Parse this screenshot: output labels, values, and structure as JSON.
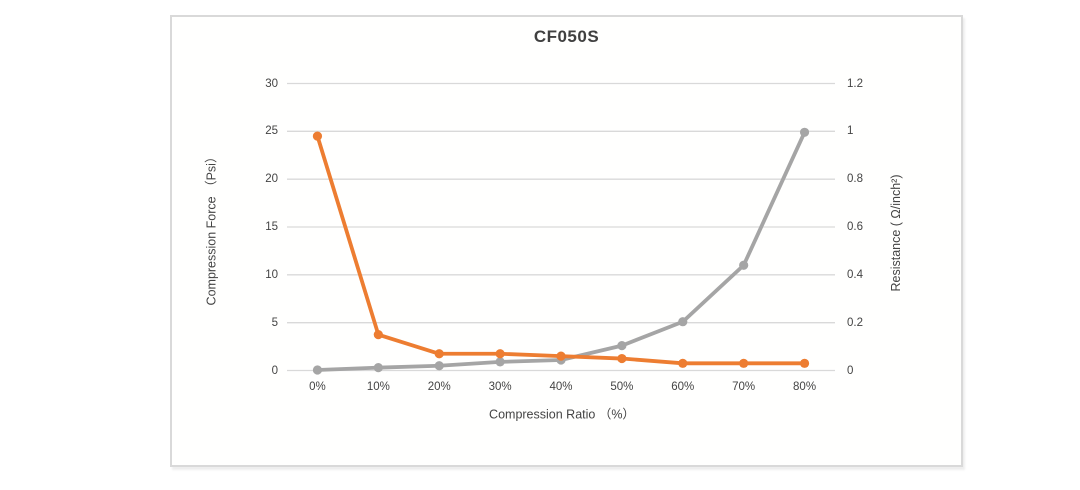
{
  "page": {
    "background": "#ffffff"
  },
  "card": {
    "background": "#fffffe",
    "border_color": "#d9d9d9"
  },
  "chart_data": {
    "type": "line",
    "title": "CF050S",
    "categories": [
      "0%",
      "10%",
      "20%",
      "30%",
      "40%",
      "50%",
      "60%",
      "70%",
      "80%"
    ],
    "xlabel": "Compression Ratio （%）",
    "y_left": {
      "label": "Compression Force （Psi）",
      "min": 0,
      "max": 30,
      "tick_labels": [
        "0",
        "5",
        "10",
        "15",
        "20",
        "25",
        "30"
      ]
    },
    "y_right": {
      "label": "Resistance ( Ω/inch²)",
      "min": 0,
      "max": 1.2,
      "tick_labels": [
        "0",
        "0.2",
        "0.4",
        "0.6",
        "0.8",
        "1",
        "1.2"
      ]
    },
    "series": [
      {
        "name": "Compression Force",
        "axis": "left",
        "color": "#A5A5A5",
        "values": [
          0.05,
          0.3,
          0.5,
          0.9,
          1.1,
          2.6,
          5.1,
          11,
          24.9
        ]
      },
      {
        "name": "Resistance",
        "axis": "right",
        "color": "#ED7D31",
        "values": [
          0.98,
          0.15,
          0.07,
          0.07,
          0.06,
          0.05,
          0.03,
          0.03,
          0.03
        ]
      }
    ],
    "grid": true,
    "gridline_color": "#d9d9d9",
    "legend": "none"
  }
}
